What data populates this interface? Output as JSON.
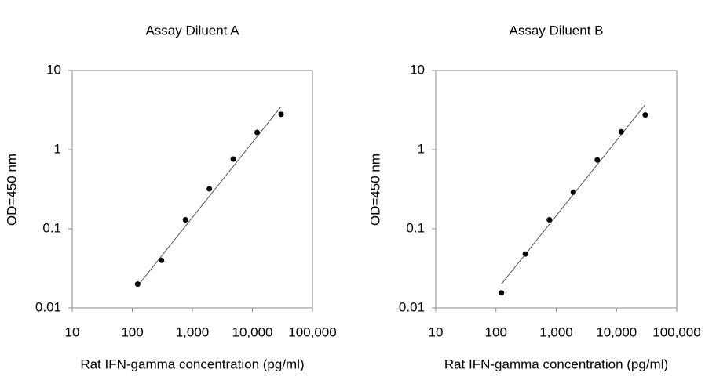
{
  "chart_data": [
    {
      "type": "scatter",
      "title": "Assay Diluent A",
      "x_label": "Rat IFN-gamma concentration (pg/ml)",
      "y_label": "OD=450 nm",
      "x": [
        123,
        307,
        768,
        1920,
        4800,
        12000,
        30000
      ],
      "y": [
        0.02,
        0.04,
        0.13,
        0.32,
        0.76,
        1.65,
        2.8
      ],
      "trendline": {
        "x": [
          123,
          30000
        ],
        "y": [
          0.019,
          3.5
        ]
      },
      "color": "#000000",
      "xlog": true,
      "ylog": true,
      "xlim": [
        10,
        100000
      ],
      "ylim": [
        0.01,
        10
      ],
      "xticks": [
        10,
        100,
        {
          "value": 1000,
          "label": "1,000"
        },
        {
          "value": 10000,
          "label": "10,000"
        },
        {
          "value": 100000,
          "label": "100,000"
        }
      ],
      "yticks": [
        0.01,
        0.1,
        1,
        10
      ]
    },
    {
      "type": "scatter",
      "title": "Assay Diluent B",
      "x_label": "Rat IFN-gamma concentration (pg/ml)",
      "y_label": "OD=450 nm",
      "x": [
        123,
        307,
        768,
        1920,
        4800,
        12000,
        30000
      ],
      "y": [
        0.0155,
        0.048,
        0.13,
        0.29,
        0.74,
        1.68,
        2.75
      ],
      "trendline": {
        "x": [
          123,
          30000
        ],
        "y": [
          0.02,
          3.7
        ]
      },
      "color": "#000000",
      "xlog": true,
      "ylog": true,
      "xlim": [
        10,
        100000
      ],
      "ylim": [
        0.01,
        10
      ],
      "xticks": [
        10,
        100,
        {
          "value": 1000,
          "label": "1,000"
        },
        {
          "value": 10000,
          "label": "10,000"
        },
        {
          "value": 100000,
          "label": "100,000"
        }
      ],
      "yticks": [
        0.01,
        0.1,
        1,
        10
      ]
    }
  ]
}
